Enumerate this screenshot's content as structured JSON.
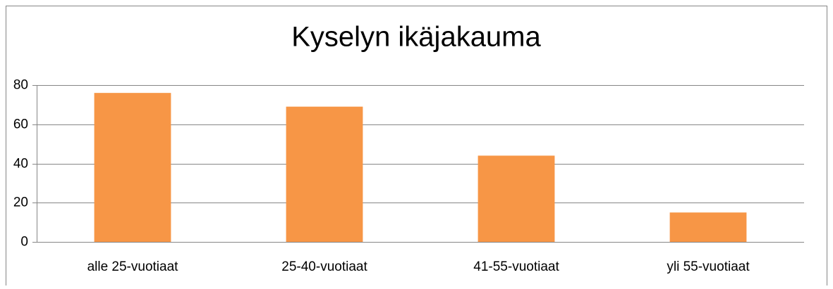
{
  "chart_data": {
    "type": "bar",
    "title": "Kyselyn ikäjakauma",
    "categories": [
      "alle 25-vuotiaat",
      "25-40-vuotiaat",
      "41-55-vuotiaat",
      "yli 55-vuotiaat"
    ],
    "values": [
      76,
      69,
      44,
      15
    ],
    "color": "#f79646",
    "ylim": [
      0,
      80
    ],
    "yticks": [
      0,
      20,
      40,
      60,
      80
    ],
    "grid": true
  }
}
